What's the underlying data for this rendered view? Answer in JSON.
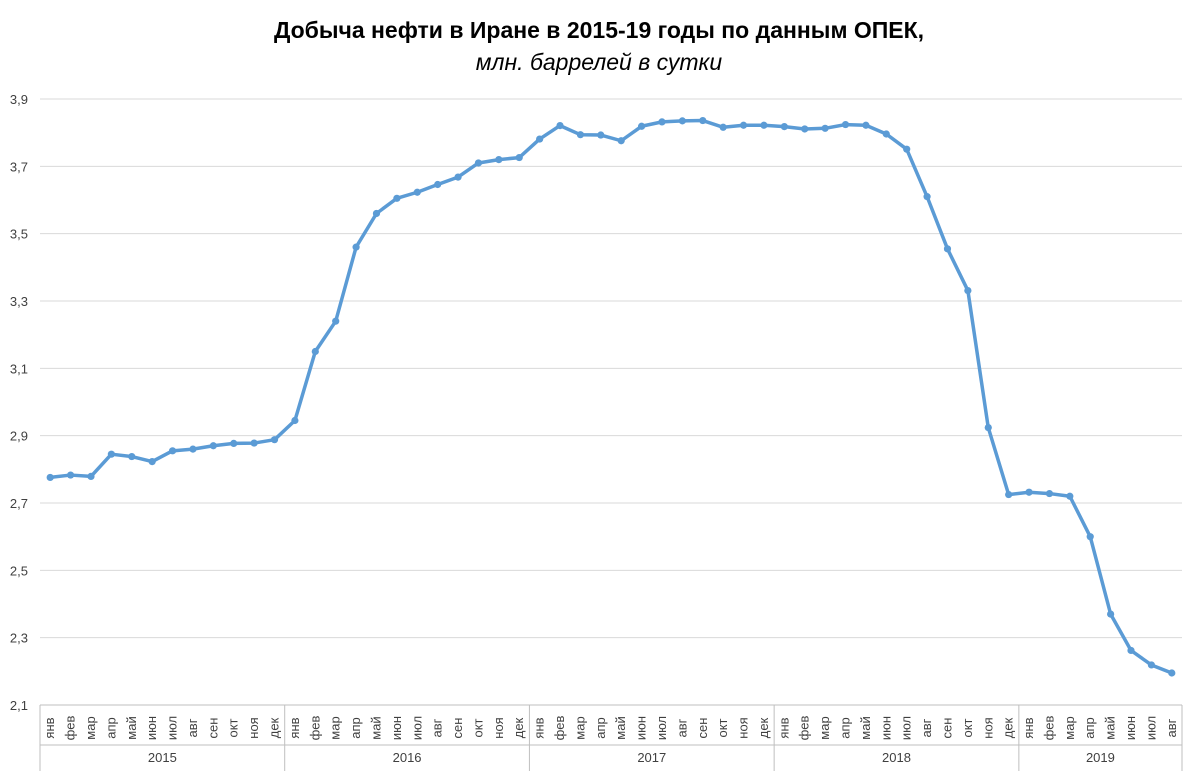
{
  "chart_data": {
    "type": "line",
    "title": "Добыча нефти в Иране в 2015-19 годы по данным ОПЕК,",
    "subtitle": "млн. баррелей в сутки",
    "ylim": [
      2.1,
      3.9
    ],
    "yticks": [
      "2,1",
      "2,3",
      "2,5",
      "2,7",
      "2,9",
      "3,1",
      "3,3",
      "3,5",
      "3,7",
      "3,9"
    ],
    "ytick_values": [
      2.1,
      2.3,
      2.5,
      2.7,
      2.9,
      3.1,
      3.3,
      3.5,
      3.7,
      3.9
    ],
    "grid": true,
    "legend": "none",
    "line_color": "#5b9bd5",
    "years": [
      {
        "label": "2015",
        "months": 12
      },
      {
        "label": "2016",
        "months": 12
      },
      {
        "label": "2017",
        "months": 12
      },
      {
        "label": "2018",
        "months": 12
      },
      {
        "label": "2019",
        "months": 8
      }
    ],
    "categories": [
      "янв",
      "фев",
      "мар",
      "апр",
      "май",
      "июн",
      "июл",
      "авг",
      "сен",
      "окт",
      "ноя",
      "дек",
      "янв",
      "фев",
      "мар",
      "апр",
      "май",
      "июн",
      "июл",
      "авг",
      "сен",
      "окт",
      "ноя",
      "дек",
      "янв",
      "фев",
      "мар",
      "апр",
      "май",
      "июн",
      "июл",
      "авг",
      "сен",
      "окт",
      "ноя",
      "дек",
      "янв",
      "фев",
      "мар",
      "апр",
      "май",
      "июн",
      "июл",
      "авг",
      "сен",
      "окт",
      "ноя",
      "дек",
      "янв",
      "фев",
      "мар",
      "апр",
      "май",
      "июн",
      "июл",
      "авг"
    ],
    "values": [
      2.776,
      2.783,
      2.779,
      2.845,
      2.838,
      2.823,
      2.855,
      2.86,
      2.87,
      2.877,
      2.878,
      2.888,
      2.945,
      3.15,
      3.24,
      3.46,
      3.56,
      3.605,
      3.623,
      3.646,
      3.668,
      3.71,
      3.72,
      3.726,
      3.781,
      3.821,
      3.794,
      3.793,
      3.776,
      3.819,
      3.832,
      3.835,
      3.836,
      3.816,
      3.822,
      3.822,
      3.818,
      3.811,
      3.813,
      3.824,
      3.822,
      3.796,
      3.751,
      3.61,
      3.455,
      3.331,
      2.924,
      2.725,
      2.732,
      2.728,
      2.72,
      2.6,
      2.37,
      2.262,
      2.219,
      2.195
    ]
  }
}
